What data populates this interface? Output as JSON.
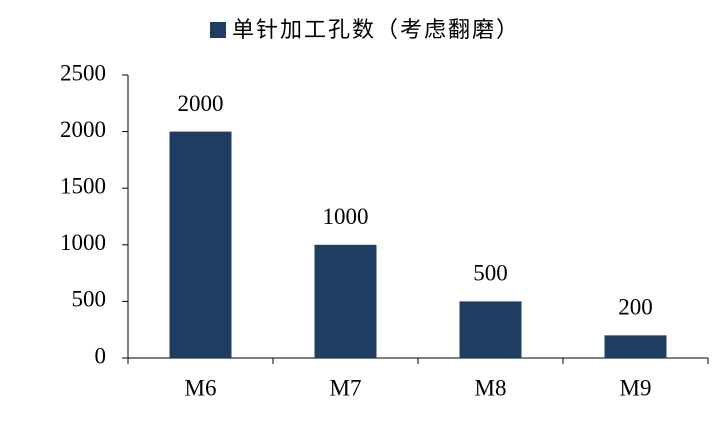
{
  "chart_data": {
    "type": "bar",
    "categories": [
      "M6",
      "M7",
      "M8",
      "M9"
    ],
    "series": [
      {
        "name": "单针加工孔数（考虑翻磨）",
        "color": "#1f3c61",
        "values": [
          2000,
          1000,
          500,
          200
        ]
      }
    ],
    "ylim": [
      0,
      2500
    ],
    "yticks": [
      0,
      500,
      1000,
      1500,
      2000,
      2500
    ],
    "legend": "top",
    "data_labels": true
  }
}
